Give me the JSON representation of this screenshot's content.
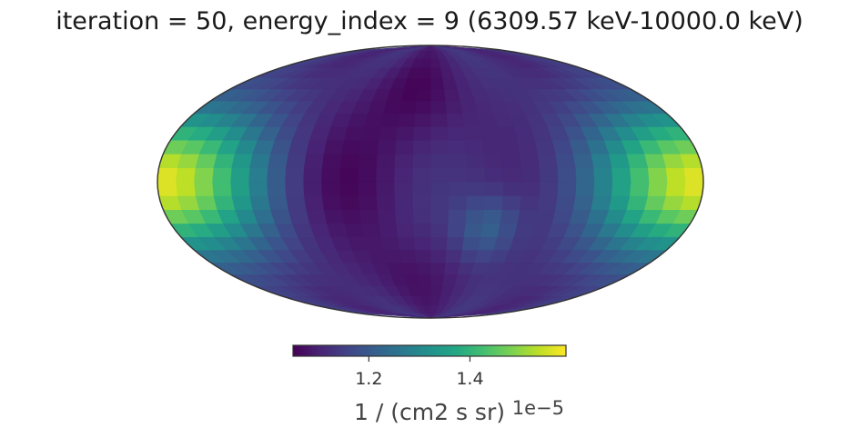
{
  "chart_data": {
    "type": "heatmap",
    "projection": "mollweide",
    "title": "iteration = 50, energy_index = 9 (6309.57 keV-10000.0 keV)",
    "colormap": "viridis",
    "grid": false,
    "colorbar": {
      "placement": "bottom",
      "range": [
        1.05,
        1.59
      ],
      "ticks": [
        1.2,
        1.4
      ],
      "tick_labels": [
        "1.2",
        "1.4"
      ],
      "offset_text": "1e−5",
      "label": "1 / (cm2 s sr)"
    },
    "value_range": [
      1.05,
      1.59
    ],
    "features": [
      {
        "description": "edge maximum",
        "lon_deg": 180,
        "lat_deg": 0,
        "value": 1.59
      },
      {
        "description": "minimum region",
        "lon_deg": 15,
        "lat_deg": 50,
        "value": 1.05
      },
      {
        "description": "minimum region",
        "lon_deg": 60,
        "lat_deg": 0,
        "value": 1.06
      },
      {
        "description": "local bump",
        "lon_deg": -40,
        "lat_deg": -25,
        "value": 1.22
      }
    ]
  }
}
